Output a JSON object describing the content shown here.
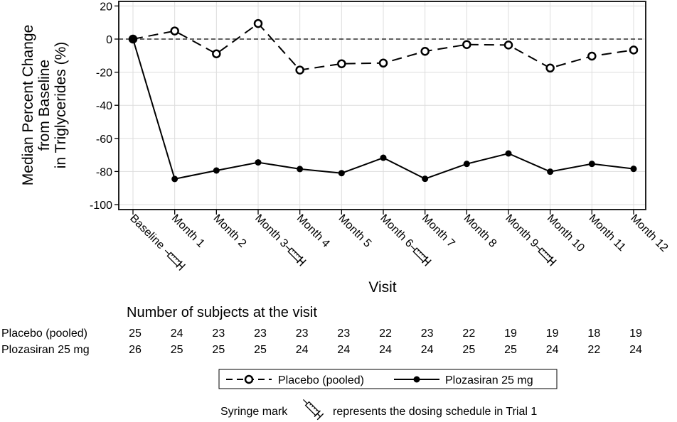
{
  "chart_data": {
    "type": "line",
    "title": "",
    "xlabel": "Visit",
    "ylabel_lines": [
      "Median Percent Change",
      "from Baseline",
      "in Triglycerides (%)"
    ],
    "ylim": [
      -100,
      20
    ],
    "yticks": [
      "20",
      "0",
      "-20",
      "-40",
      "-60",
      "-80",
      "-100"
    ],
    "ytick_values": [
      20,
      0,
      -20,
      -40,
      -60,
      -80,
      -100
    ],
    "grid": true,
    "reference_line": 0,
    "categories": [
      "Baseline",
      "Month 1",
      "Month 2",
      "Month 3",
      "Month 4",
      "Month 5",
      "Month 6",
      "Month 7",
      "Month 8",
      "Month 9",
      "Month 10",
      "Month 11",
      "Month 12"
    ],
    "dosing_marks": [
      0,
      3,
      6,
      9
    ],
    "series": [
      {
        "name": "Placebo (pooled)",
        "style": "dashed-open-circle",
        "values": [
          0,
          4.9,
          -8.9,
          9.4,
          -18.7,
          -14.9,
          -14.5,
          -7.4,
          -3.3,
          -3.6,
          -17.5,
          -10.3,
          -6.6
        ]
      },
      {
        "name": "Plozasiran 25 mg",
        "style": "solid-filled-circle",
        "values": [
          0,
          -84.5,
          -79.4,
          -74.5,
          -78.5,
          -81.0,
          -71.7,
          -84.4,
          -75.4,
          -69.1,
          -80.1,
          -75.4,
          -78.4
        ]
      }
    ],
    "legend_position": "bottom"
  },
  "subjects_table": {
    "title": "Number of subjects at the visit",
    "rows": [
      {
        "label": "Placebo (pooled)",
        "values": [
          "25",
          "24",
          "23",
          "23",
          "23",
          "23",
          "22",
          "23",
          "22",
          "19",
          "19",
          "18",
          "19"
        ]
      },
      {
        "label": "Plozasiran 25 mg",
        "values": [
          "26",
          "25",
          "25",
          "25",
          "24",
          "24",
          "24",
          "24",
          "25",
          "25",
          "24",
          "22",
          "24"
        ]
      }
    ]
  },
  "footnote": {
    "before": "Syringe mark",
    "after": "represents the dosing schedule in Trial 1"
  }
}
